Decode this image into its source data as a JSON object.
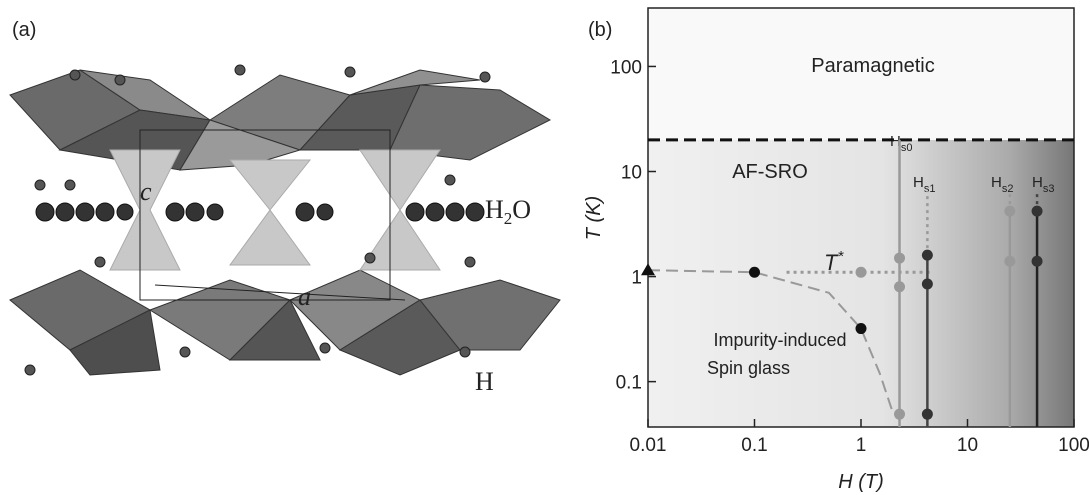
{
  "left": {
    "panel_label": "(a)",
    "labels": {
      "c": "c",
      "a": "a",
      "water": {
        "main": "H",
        "sub": "2",
        "rest": "O"
      },
      "h": "H"
    }
  },
  "chart_data": {
    "type": "scatter",
    "panel_label": "(b)",
    "xlabel": "H (T)",
    "ylabel": "T (K)",
    "log_x": true,
    "log_y": true,
    "xlim": [
      0.01,
      100
    ],
    "ylim": [
      0.037,
      360
    ],
    "xticks": [
      0.01,
      0.1,
      1,
      10,
      100
    ],
    "yticks": [
      0.1,
      1,
      10,
      100
    ],
    "annotations": {
      "paramagnetic": "Paramagnetic",
      "afsro": "AF-SRO",
      "tstar": {
        "main": "T",
        "sup": "*"
      },
      "impurity": "Impurity-induced",
      "spinglass": "Spin glass",
      "hs0": {
        "main": "H",
        "sub": "s0"
      },
      "hs1": {
        "main": "H",
        "sub": "s1"
      },
      "hs2": {
        "main": "H",
        "sub": "s2"
      },
      "hs3": {
        "main": "H",
        "sub": "s3"
      }
    },
    "lines": [
      {
        "x": [
          0.01,
          100
        ],
        "values": [
          20,
          20
        ],
        "color": "#111111",
        "dash": "dashed",
        "width": 3
      },
      {
        "x": [
          0.01,
          0.1,
          0.5,
          1,
          1.5,
          2
        ],
        "values": [
          1.15,
          1.1,
          0.7,
          0.32,
          0.12,
          0.05
        ],
        "color": "#999999",
        "dash": "dashed",
        "width": 2
      },
      {
        "x": [
          0.2,
          4.5
        ],
        "values": [
          1.1,
          1.1
        ],
        "color": "#999999",
        "dash": "dotted",
        "width": 3
      },
      {
        "x": [
          2.3,
          2.3
        ],
        "values": [
          0.037,
          20
        ],
        "color": "#999999",
        "dash": "solid",
        "width": 2.5
      },
      {
        "x": [
          4.2,
          4.2
        ],
        "values": [
          1.6,
          6.5
        ],
        "color": "#999999",
        "dash": "dotted",
        "width": 2.5
      },
      {
        "x": [
          4.2,
          4.2
        ],
        "values": [
          0.037,
          1.6
        ],
        "color": "#444444",
        "dash": "solid",
        "width": 2.5
      },
      {
        "x": [
          25,
          25
        ],
        "values": [
          4.2,
          6.5
        ],
        "color": "#999999",
        "dash": "dotted",
        "width": 2.5
      },
      {
        "x": [
          25,
          25
        ],
        "values": [
          0.037,
          4.2
        ],
        "color": "#999999",
        "dash": "solid",
        "width": 2.5
      },
      {
        "x": [
          45,
          45
        ],
        "values": [
          4.2,
          6.5
        ],
        "color": "#444444",
        "dash": "dotted",
        "width": 2.5
      },
      {
        "x": [
          45,
          45
        ],
        "values": [
          0.037,
          4.2
        ],
        "color": "#222222",
        "dash": "solid",
        "width": 2.5
      }
    ],
    "series": [
      {
        "marker": "circle",
        "color": "#111111",
        "x": [
          0.1,
          1
        ],
        "values": [
          1.1,
          0.32
        ]
      },
      {
        "marker": "circle",
        "color": "#999999",
        "x": [
          1,
          2.3,
          2.3,
          2.3,
          25,
          25
        ],
        "values": [
          1.1,
          1.5,
          0.8,
          0.049,
          4.2,
          1.4
        ]
      },
      {
        "marker": "circle",
        "color": "#333333",
        "x": [
          4.2,
          4.2,
          4.2,
          45,
          45
        ],
        "values": [
          1.6,
          0.85,
          0.049,
          4.2,
          1.4
        ]
      },
      {
        "marker": "triangle",
        "color": "#111111",
        "x": [
          0.01
        ],
        "values": [
          1.15
        ]
      }
    ]
  }
}
